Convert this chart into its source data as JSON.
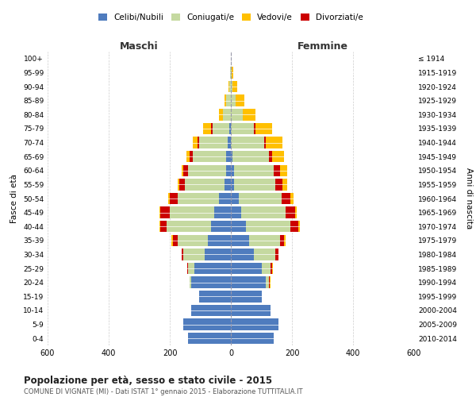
{
  "age_groups": [
    "0-4",
    "5-9",
    "10-14",
    "15-19",
    "20-24",
    "25-29",
    "30-34",
    "35-39",
    "40-44",
    "45-49",
    "50-54",
    "55-59",
    "60-64",
    "65-69",
    "70-74",
    "75-79",
    "80-84",
    "85-89",
    "90-94",
    "95-99",
    "100+"
  ],
  "birth_years": [
    "2010-2014",
    "2005-2009",
    "2000-2004",
    "1995-1999",
    "1990-1994",
    "1985-1989",
    "1980-1984",
    "1975-1979",
    "1970-1974",
    "1965-1969",
    "1960-1964",
    "1955-1959",
    "1950-1954",
    "1945-1949",
    "1940-1944",
    "1935-1939",
    "1930-1934",
    "1925-1929",
    "1920-1924",
    "1915-1919",
    "≤ 1914"
  ],
  "males": {
    "celibi": [
      140,
      155,
      130,
      105,
      130,
      120,
      85,
      75,
      65,
      55,
      40,
      20,
      15,
      15,
      10,
      5,
      0,
      0,
      0,
      0,
      0
    ],
    "coniugati": [
      0,
      0,
      0,
      0,
      5,
      20,
      70,
      100,
      145,
      145,
      135,
      130,
      125,
      110,
      95,
      55,
      25,
      15,
      5,
      2,
      0
    ],
    "vedovi": [
      0,
      0,
      0,
      0,
      0,
      2,
      2,
      5,
      5,
      5,
      5,
      5,
      5,
      10,
      15,
      25,
      15,
      5,
      2,
      0,
      0
    ],
    "divorziati": [
      0,
      0,
      0,
      0,
      0,
      2,
      5,
      15,
      20,
      30,
      25,
      20,
      15,
      10,
      5,
      5,
      0,
      0,
      0,
      0,
      0
    ]
  },
  "females": {
    "nubili": [
      140,
      155,
      130,
      100,
      115,
      100,
      75,
      60,
      50,
      35,
      25,
      10,
      10,
      5,
      0,
      0,
      0,
      0,
      0,
      0,
      0
    ],
    "coniugate": [
      0,
      0,
      0,
      2,
      10,
      30,
      70,
      100,
      145,
      145,
      140,
      135,
      130,
      120,
      110,
      75,
      40,
      15,
      5,
      2,
      0
    ],
    "vedove": [
      0,
      0,
      0,
      0,
      2,
      2,
      2,
      5,
      5,
      5,
      10,
      15,
      25,
      40,
      55,
      55,
      40,
      30,
      15,
      5,
      0
    ],
    "divorziate": [
      0,
      0,
      0,
      0,
      2,
      5,
      10,
      15,
      25,
      30,
      30,
      25,
      20,
      10,
      5,
      5,
      0,
      0,
      0,
      0,
      0
    ]
  },
  "colors": {
    "celibi": "#4f7cbe",
    "coniugati": "#c5d9a0",
    "vedovi": "#ffc000",
    "divorziati": "#cc0000"
  },
  "title": "Popolazione per età, sesso e stato civile - 2015",
  "subtitle": "COMUNE DI VIGNATE (MI) - Dati ISTAT 1° gennaio 2015 - Elaborazione TUTTITALIA.IT",
  "xlabel_left": "Maschi",
  "xlabel_right": "Femmine",
  "ylabel_left": "Fasce di età",
  "ylabel_right": "Anni di nascita",
  "xlim": 600,
  "background_color": "#ffffff",
  "grid_color": "#cccccc"
}
